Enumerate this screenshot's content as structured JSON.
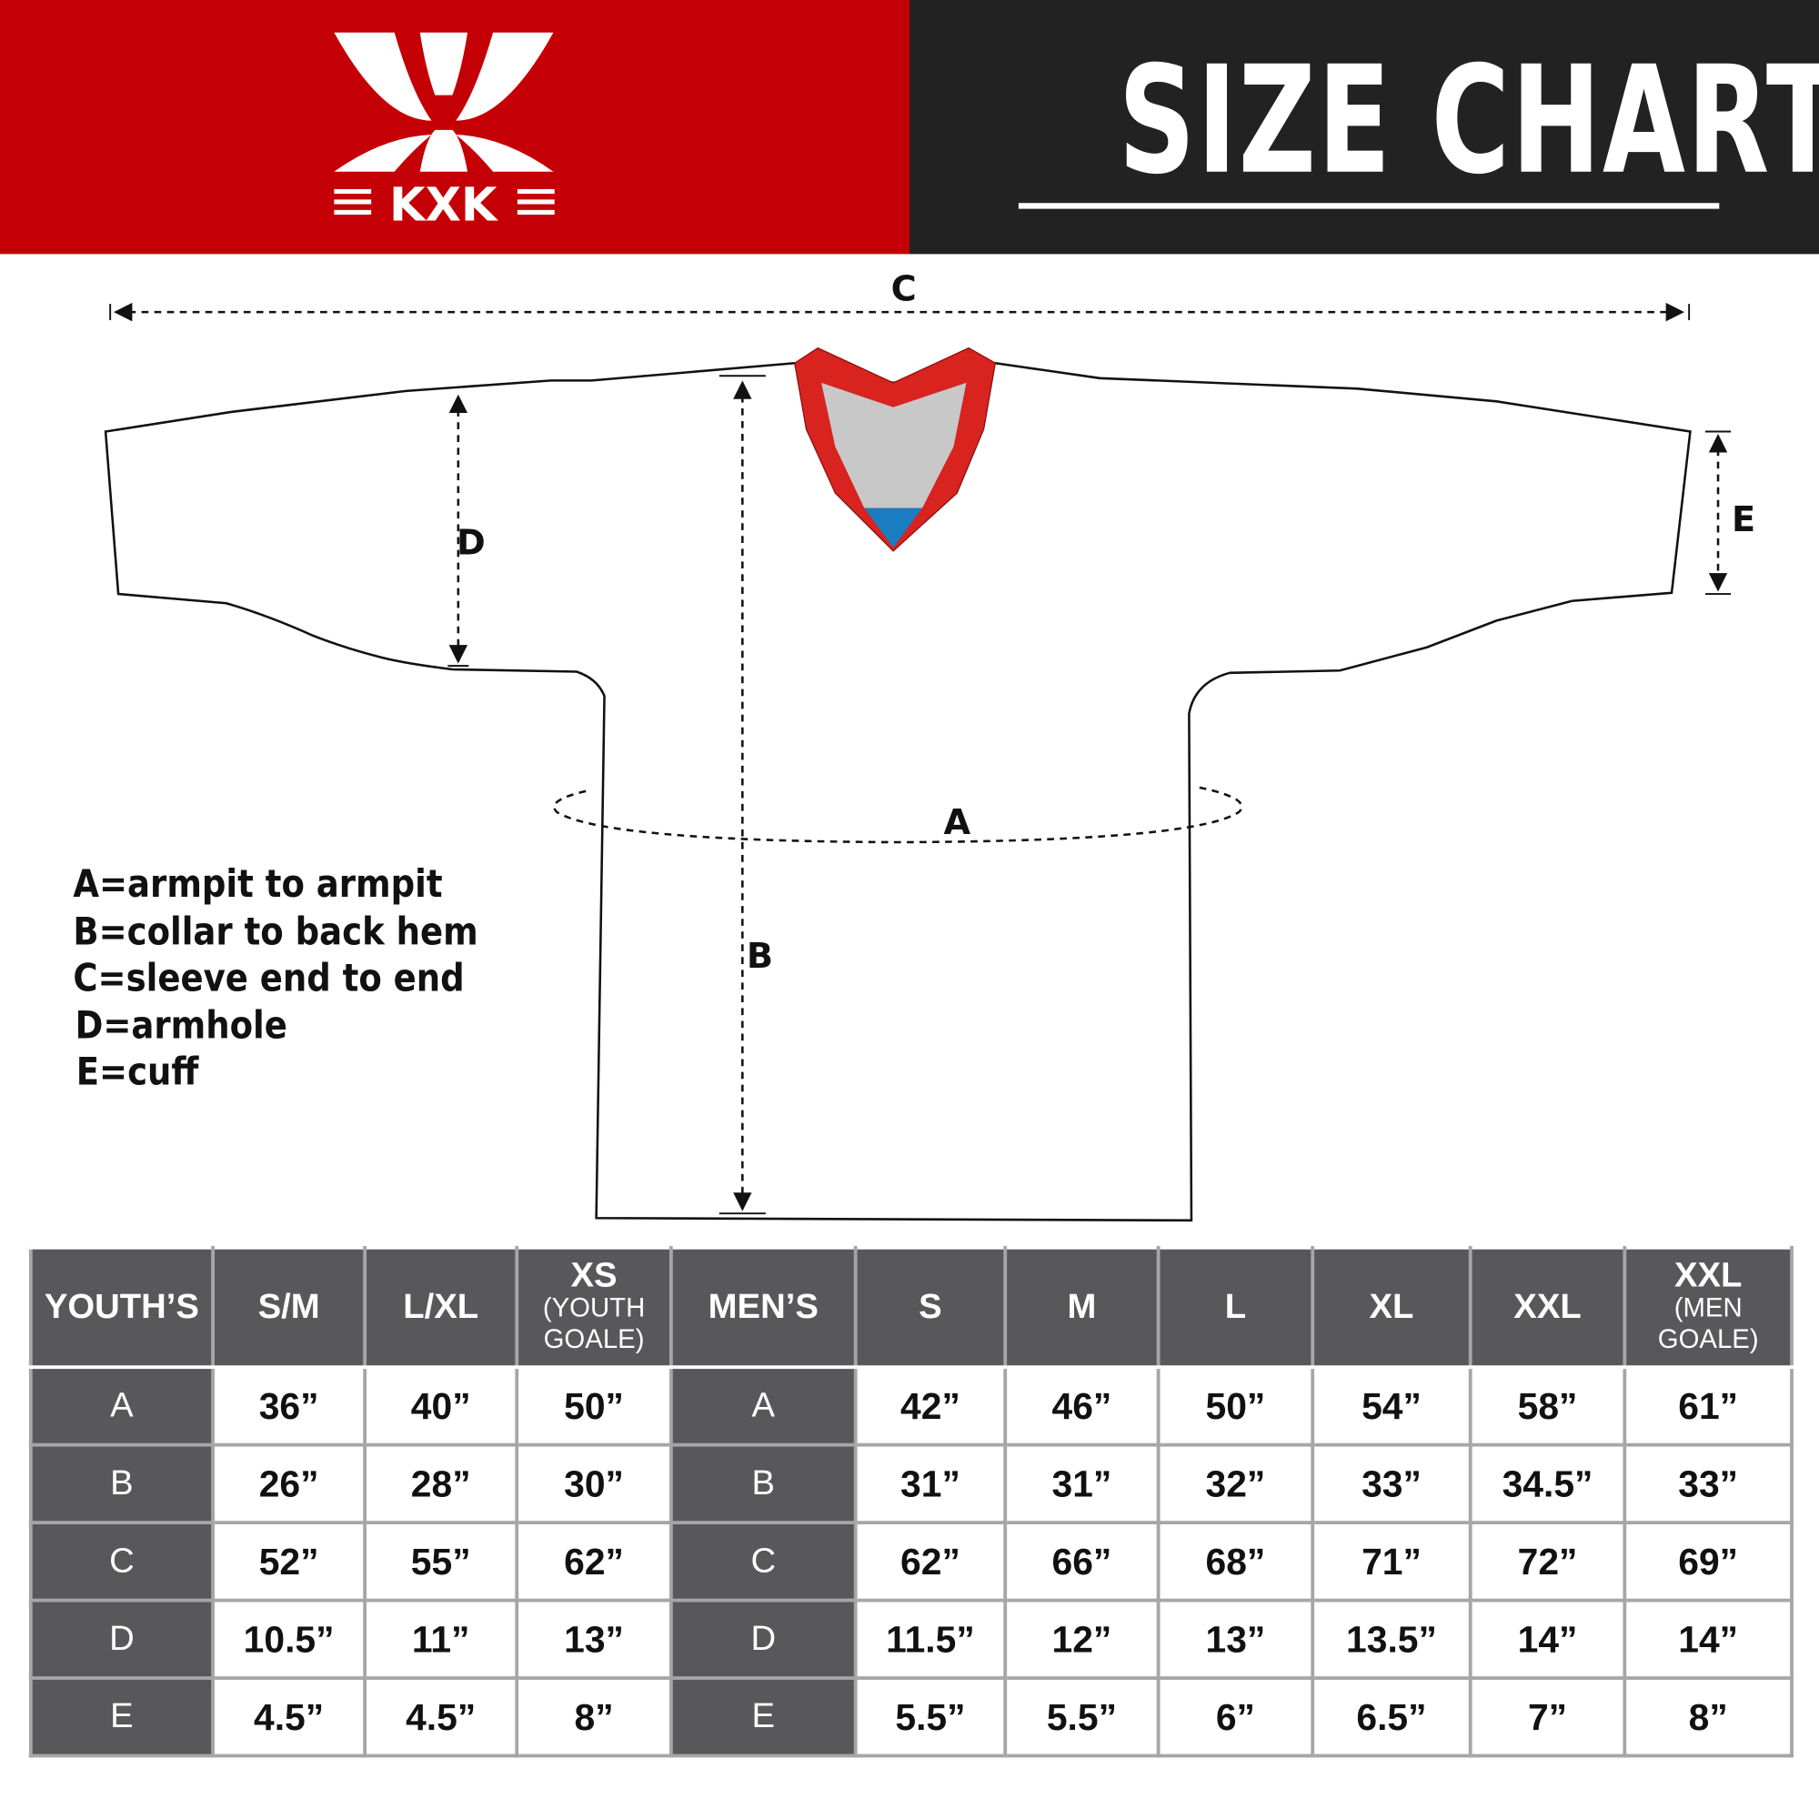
{
  "brand": {
    "logo_text": "KXK",
    "colors": {
      "red": "#c40006",
      "dark": "#222223",
      "table_header": "#58585a"
    }
  },
  "header": {
    "title": "SIZE CHART"
  },
  "diagram": {
    "labels": {
      "a": "A",
      "b": "B",
      "c": "C",
      "d": "D",
      "e": "E"
    },
    "collar_colors": {
      "trim": "#d8231e",
      "inner": "#c8c8c8",
      "tip": "#1a7cc1"
    }
  },
  "legend": [
    "A=armpit to armpit",
    "B=collar to back hem",
    "C=sleeve end to end",
    "D=armhole",
    "E=cuff"
  ],
  "table": {
    "youth_header": "YOUTH’S",
    "youth_sizes": [
      {
        "main": "S/M",
        "sub": ""
      },
      {
        "main": "L/XL",
        "sub": ""
      },
      {
        "main": "XS",
        "sub": "(YOUTH GOALE)"
      }
    ],
    "men_header": "MEN’S",
    "men_sizes": [
      {
        "main": "S",
        "sub": ""
      },
      {
        "main": "M",
        "sub": ""
      },
      {
        "main": "L",
        "sub": ""
      },
      {
        "main": "XL",
        "sub": ""
      },
      {
        "main": "XXL",
        "sub": ""
      },
      {
        "main": "XXL",
        "sub": "(MEN GOALE)"
      }
    ],
    "rows": [
      {
        "key": "A",
        "youth": [
          "36”",
          "40”",
          "50”"
        ],
        "men": [
          "42”",
          "46”",
          "50”",
          "54”",
          "58”",
          "61”"
        ]
      },
      {
        "key": "B",
        "youth": [
          "26”",
          "28”",
          "30”"
        ],
        "men": [
          "31”",
          "31”",
          "32”",
          "33”",
          "34.5”",
          "33”"
        ]
      },
      {
        "key": "C",
        "youth": [
          "52”",
          "55”",
          "62”"
        ],
        "men": [
          "62”",
          "66”",
          "68”",
          "71”",
          "72”",
          "69”"
        ]
      },
      {
        "key": "D",
        "youth": [
          "10.5”",
          "11”",
          "13”"
        ],
        "men": [
          "11.5”",
          "12”",
          "13”",
          "13.5”",
          "14”",
          "14”"
        ]
      },
      {
        "key": "E",
        "youth": [
          "4.5”",
          "4.5”",
          "8”"
        ],
        "men": [
          "5.5”",
          "5.5”",
          "6”",
          "6.5”",
          "7”",
          "8”"
        ]
      }
    ]
  }
}
